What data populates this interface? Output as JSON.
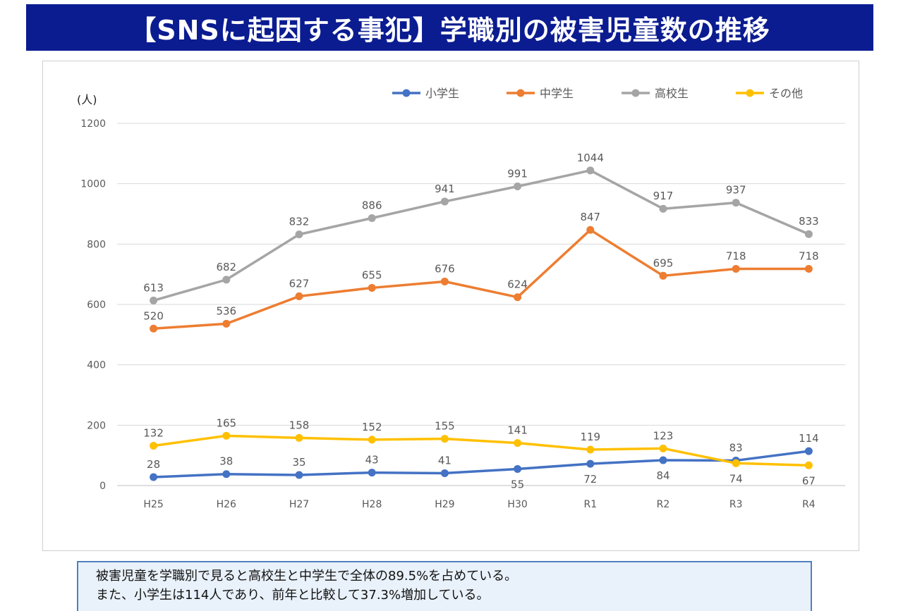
{
  "page_title": "【SNSに起因する事犯】学職別の被害児童数の推移",
  "note": {
    "line1": "被害児童を学職別で見ると高校生と中学生で全体の89.5%を占めている。",
    "line2": "また、小学生は114人であり、前年と比較して37.3%増加している。"
  },
  "chart_data": {
    "type": "line",
    "title": "",
    "xlabel": "",
    "ylabel": "(人)",
    "ylim": [
      0,
      1200
    ],
    "yticks": [
      0,
      200,
      400,
      600,
      800,
      1000,
      1200
    ],
    "grid": true,
    "legend_position": "top-right",
    "categories": [
      "H25",
      "H26",
      "H27",
      "H28",
      "H29",
      "H30",
      "R1",
      "R2",
      "R3",
      "R4"
    ],
    "series": [
      {
        "name": "小学生",
        "color": "#4472c4",
        "values": [
          28,
          38,
          35,
          43,
          41,
          55,
          72,
          84,
          83,
          114
        ],
        "label_pos": [
          "above",
          "above",
          "above",
          "above",
          "above",
          "below",
          "below",
          "below",
          "above",
          "above"
        ]
      },
      {
        "name": "中学生",
        "color": "#ed7d31",
        "values": [
          520,
          536,
          627,
          655,
          676,
          624,
          847,
          695,
          718,
          718
        ],
        "label_pos": [
          "above",
          "above",
          "above",
          "above",
          "above",
          "above",
          "above",
          "above",
          "above",
          "above"
        ]
      },
      {
        "name": "高校生",
        "color": "#a5a5a5",
        "values": [
          613,
          682,
          832,
          886,
          941,
          991,
          1044,
          917,
          937,
          833
        ],
        "label_pos": [
          "above",
          "above",
          "above",
          "above",
          "above",
          "above",
          "above",
          "above",
          "above",
          "above"
        ]
      },
      {
        "name": "その他",
        "color": "#ffc000",
        "values": [
          132,
          165,
          158,
          152,
          155,
          141,
          119,
          123,
          74,
          67
        ],
        "label_pos": [
          "above",
          "above",
          "above",
          "above",
          "above",
          "above",
          "above",
          "above",
          "below",
          "below"
        ]
      }
    ]
  }
}
